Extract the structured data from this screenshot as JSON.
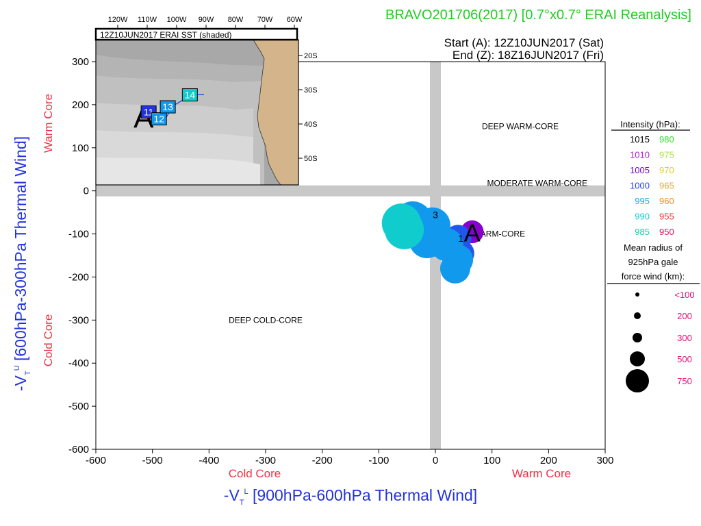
{
  "header": {
    "title": "BRAVO201706(2017) [0.7°x0.7° ERAI Reanalysis]",
    "start": "Start (A): 12Z10JUN2017 (Sat)",
    "end": "End (Z): 18Z16JUN2017 (Fri)"
  },
  "colors": {
    "title": "#22cc22",
    "axis_label": "#2233dd",
    "core_label": "#ee3344",
    "land": "#d4b48a",
    "quadrant_bar": "#c8c8c8"
  },
  "chart_data": {
    "type": "scatter",
    "title": "BRAVO201706(2017) [0.7°x0.7° ERAI Reanalysis]",
    "xlabel": "-V_T^L [900hPa-600hPa Thermal Wind]",
    "xlabel_prefix": "-V",
    "xlabel_sub": "T",
    "xlabel_sup": "L",
    "xlabel_text": " [900hPa-600hPa Thermal Wind]",
    "ylabel": "-V_T^U [600hPa-300hPa Thermal Wind]",
    "ylabel_prefix": "-V",
    "ylabel_sub": "T",
    "ylabel_sup": "U",
    "ylabel_text": " [600hPa-300hPa Thermal Wind]",
    "xlim": [
      -600,
      300
    ],
    "ylim": [
      -600,
      300
    ],
    "xticks": [
      -600,
      -500,
      -400,
      -300,
      -200,
      -100,
      0,
      100,
      200,
      300
    ],
    "yticks": [
      -600,
      -500,
      -400,
      -300,
      -200,
      -100,
      0,
      100,
      200,
      300
    ],
    "x_core_labels": {
      "cold": "Cold Core",
      "warm": "Warm Core"
    },
    "y_core_labels": {
      "cold": "Cold Core",
      "warm": "Warm Core"
    },
    "quadrant_labels": [
      {
        "text": "DEEP WARM-CORE",
        "x": 150,
        "y": 150
      },
      {
        "text": "MODERATE WARM-CORE",
        "x": 180,
        "y": 18
      },
      {
        "text": "SHALLOW WARM-CORE",
        "x": 75,
        "y": -100
      },
      {
        "text": "DEEP COLD-CORE",
        "x": -300,
        "y": -300
      }
    ],
    "track": [
      {
        "x": 65,
        "y": -95,
        "radius_km": 200,
        "color": "#8800cc"
      },
      {
        "x": 40,
        "y": -110,
        "radius_km": 300,
        "color": "#2255ee"
      },
      {
        "x": 45,
        "y": -145,
        "radius_km": 300,
        "color": "#2255ee"
      },
      {
        "x": 35,
        "y": -180,
        "radius_km": 400,
        "color": "#1199ee"
      },
      {
        "x": 40,
        "y": -160,
        "radius_km": 400,
        "color": "#1199ee"
      },
      {
        "x": 20,
        "y": -125,
        "radius_km": 500,
        "color": "#1199ee"
      },
      {
        "x": -15,
        "y": -115,
        "radius_km": 600,
        "color": "#1199ee"
      },
      {
        "x": -5,
        "y": -80,
        "radius_km": 600,
        "color": "#1199ee"
      },
      {
        "x": -40,
        "y": -70,
        "radius_km": 750,
        "color": "#1199ee"
      },
      {
        "x": -60,
        "y": -75,
        "radius_km": 750,
        "color": "#11cccc"
      },
      {
        "x": -55,
        "y": -90,
        "radius_km": 750,
        "color": "#11cccc"
      }
    ],
    "track_labels": [
      {
        "text": "A",
        "x": 65,
        "y": -95,
        "style": "start"
      },
      {
        "text": "1",
        "x": 45,
        "y": -110,
        "style": "small"
      },
      {
        "text": "3",
        "x": 0,
        "y": -55,
        "style": "small"
      }
    ],
    "intensity_legend": {
      "title": "Intensity (hPa):",
      "items": [
        {
          "value": "1015",
          "color": "#000000"
        },
        {
          "value": "980",
          "color": "#33dd33"
        },
        {
          "value": "1010",
          "color": "#aa22cc"
        },
        {
          "value": "975",
          "color": "#aadd44"
        },
        {
          "value": "1005",
          "color": "#7700cc"
        },
        {
          "value": "970",
          "color": "#ddcc33"
        },
        {
          "value": "1000",
          "color": "#2244ee"
        },
        {
          "value": "965",
          "color": "#ddaa33"
        },
        {
          "value": "995",
          "color": "#11aaee"
        },
        {
          "value": "960",
          "color": "#ee8822"
        },
        {
          "value": "990",
          "color": "#11cccc"
        },
        {
          "value": "955",
          "color": "#ee3333"
        },
        {
          "value": "985",
          "color": "#11ccaa"
        },
        {
          "value": "950",
          "color": "#dd1166"
        }
      ]
    },
    "radius_legend": {
      "title_lines": [
        "Mean radius of",
        "925hPa gale",
        "force wind (km):"
      ],
      "items": [
        {
          "label": "<100",
          "km": 100
        },
        {
          "label": "200",
          "km": 200
        },
        {
          "label": "300",
          "km": 300
        },
        {
          "label": "500",
          "km": 500
        },
        {
          "label": "750",
          "km": 750
        }
      ],
      "label_color": "#dd1177"
    },
    "inset": {
      "label": "12Z10JUN2017 ERAI SST (shaded)",
      "lon_ticks": [
        "120W",
        "110W",
        "100W",
        "90W",
        "80W",
        "70W",
        "60W"
      ],
      "lat_ticks": [
        "20S",
        "30S",
        "40S",
        "50S"
      ],
      "track": [
        {
          "text": "A",
          "lon": -110.5,
          "lat": -37.5,
          "color": "#2233dd"
        },
        {
          "text": "11",
          "lon": -109.5,
          "lat": -36.5,
          "color": "#2233dd"
        },
        {
          "text": "12",
          "lon": -106,
          "lat": -38.5,
          "color": "#1199ee"
        },
        {
          "text": "13",
          "lon": -103,
          "lat": -35,
          "color": "#1199ee"
        },
        {
          "text": "14",
          "lon": -95.5,
          "lat": -31.5,
          "color": "#11cccc"
        }
      ]
    }
  }
}
